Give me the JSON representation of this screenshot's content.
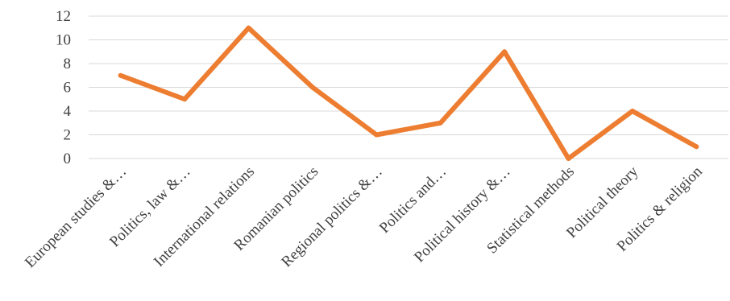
{
  "chart_data": {
    "type": "line",
    "categories": [
      "European studies &…",
      "Politics, law &…",
      "International relations",
      "Romanian politics",
      "Regional politics &…",
      "Politics and…",
      "Political history &…",
      "Statistical methods",
      "Political theory",
      "Politics & religion"
    ],
    "series": [
      {
        "values": [
          7,
          5,
          11,
          6,
          2,
          3,
          9,
          0,
          4,
          1
        ]
      }
    ],
    "ylim": [
      0,
      12
    ],
    "yticks": [
      0,
      2,
      4,
      6,
      8,
      10,
      12
    ],
    "grid": true,
    "legend": "none",
    "line_color": "#ED7D31",
    "grid_color": "#d9d9d9"
  }
}
